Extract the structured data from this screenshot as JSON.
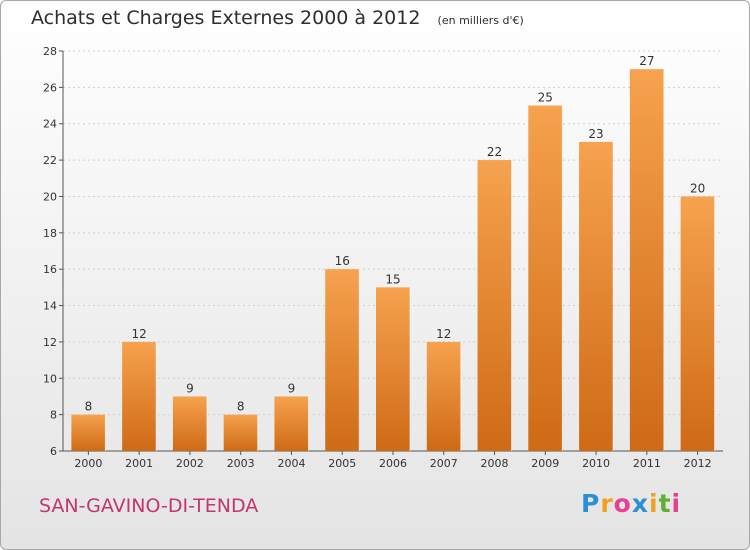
{
  "header": {
    "title": "Achats et Charges Externes 2000 à 2012",
    "unit": "(en milliers d'€)"
  },
  "footer": {
    "commune": "SAN-GAVINO-DI-TENDA",
    "logo_letters": [
      "P",
      "r",
      "o",
      "x",
      "i",
      "t",
      "i"
    ],
    "logo_colors": [
      "#2b8fd8",
      "#f0a020",
      "#e84090",
      "#2b8fd8",
      "#f0a020",
      "#60b030",
      "#e84090"
    ]
  },
  "chart_data": {
    "type": "bar",
    "title": "Achats et Charges Externes 2000 à 2012",
    "xlabel": "",
    "ylabel": "",
    "categories": [
      "2000",
      "2001",
      "2002",
      "2003",
      "2004",
      "2005",
      "2006",
      "2007",
      "2008",
      "2009",
      "2010",
      "2011",
      "2012"
    ],
    "values": [
      8,
      12,
      9,
      8,
      9,
      16,
      15,
      12,
      22,
      25,
      23,
      27,
      20
    ],
    "ylim": [
      6,
      28
    ],
    "yticks": [
      6,
      8,
      10,
      12,
      14,
      16,
      18,
      20,
      22,
      24,
      26,
      28
    ],
    "grid": true,
    "bar_color_top": "#f6a24e",
    "bar_color_bottom": "#cf6a16"
  }
}
